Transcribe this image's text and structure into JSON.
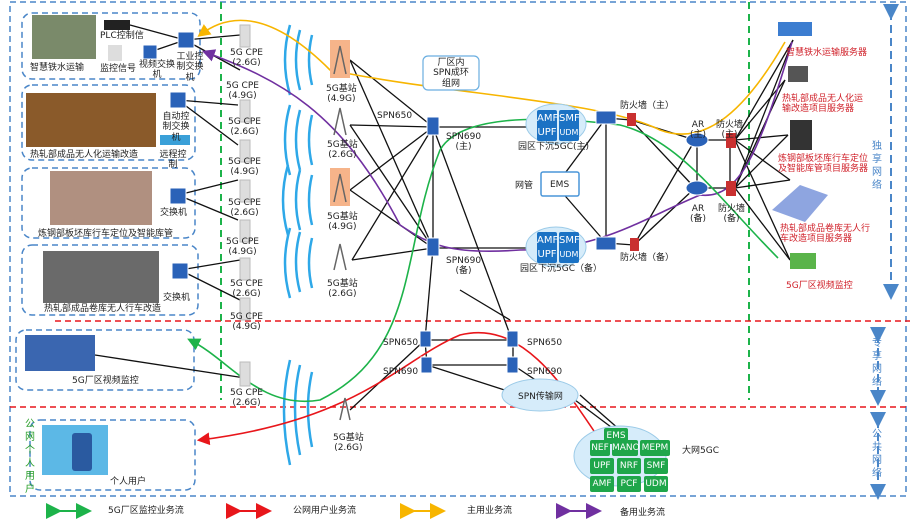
{
  "left_groups": [
    {
      "title": "智慧铁水运输",
      "plc": "PLC控制信",
      "monitor": "监控信号",
      "video_switch": "视频交换机",
      "switch": "工业控制交换机"
    },
    {
      "title": "热轧部成品无人化运输改造",
      "switch": "自动控制交换机",
      "remote": "远程控制"
    },
    {
      "title": "炼钢部板坯库行车定位及智能库管",
      "switch": "交换机"
    },
    {
      "title": "热轧部成品卷库无人行车改造",
      "switch": "交换机"
    }
  ],
  "video_monitor": "5G厂区视频监控",
  "personal_user": "个人用户",
  "public_user_label": "公网个人用户",
  "cpe": [
    "5G CPE\n(2.6G)",
    "5G CPE\n(4.9G)",
    "5G CPE\n(2.6G)",
    "5G CPE\n(4.9G)",
    "5G CPE\n(2.6G)",
    "5G CPE\n(4.9G)",
    "5G CPE\n(2.6G)",
    "5G CPE\n(4.9G)",
    "5G CPE\n(2.6G)"
  ],
  "base_stations": [
    "5G基站\n(4.9G)",
    "5G基站\n(2.6G)",
    "5G基站\n(4.9G)",
    "5G基站\n(2.6G)",
    "5G基站\n(2.6G)"
  ],
  "spn_ring": "厂区内\nSPN成环\n组网",
  "spn650": "SPN650",
  "spn690_main": "SPN690\n(主)",
  "spn690_backup": "SPN690\n(备)",
  "core_main": {
    "nf": [
      "AMF",
      "SMF",
      "UPF",
      "UDM"
    ],
    "label": "园区下沉5GC(主)"
  },
  "core_backup": {
    "nf": [
      "AMF",
      "SMF",
      "UPF",
      "UDM"
    ],
    "label": "园区下沉5GC（备）"
  },
  "nms": {
    "label": "网管",
    "ems": "EMS"
  },
  "firewall_main": "防火墙（主）",
  "firewall_backup": "防火墙（备）",
  "ar_main": "AR\n(主)",
  "ar_backup": "AR\n(备)",
  "fw2_main": "防火墙\n(主)",
  "fw2_backup": "防火墙\n(备)",
  "servers": [
    "智慧铁水运输服务器",
    "热轧部成品无人化运\n输改造项目服务器",
    "炼钢部板坯库行车定位\n及智能库管项目服务器",
    "热轧部成品卷库无人行\n车改造项目服务器",
    "5G厂区视频监控"
  ],
  "spn_lower": [
    "SPN650",
    "SPN650",
    "SPN690",
    "SPN690"
  ],
  "spn_transport": "SPN传输网",
  "big_core": {
    "label": "大网5GC",
    "nf": [
      "EMS",
      "NEF",
      "MANO",
      "MEPM",
      "UPF",
      "NRF",
      "SMF",
      "AMF",
      "PCF",
      "UDM"
    ]
  },
  "zones": {
    "exclusive": "独享网络",
    "dedicated": "专享网络",
    "public": "公共网络"
  },
  "legend": [
    {
      "label": "5G厂区监控业务流",
      "color": "#1db34a"
    },
    {
      "label": "公网用户业务流",
      "color": "#e8161b"
    },
    {
      "label": "主用业务流",
      "color": "#f7b500"
    },
    {
      "label": "备用业务流",
      "color": "#7030a0"
    }
  ]
}
